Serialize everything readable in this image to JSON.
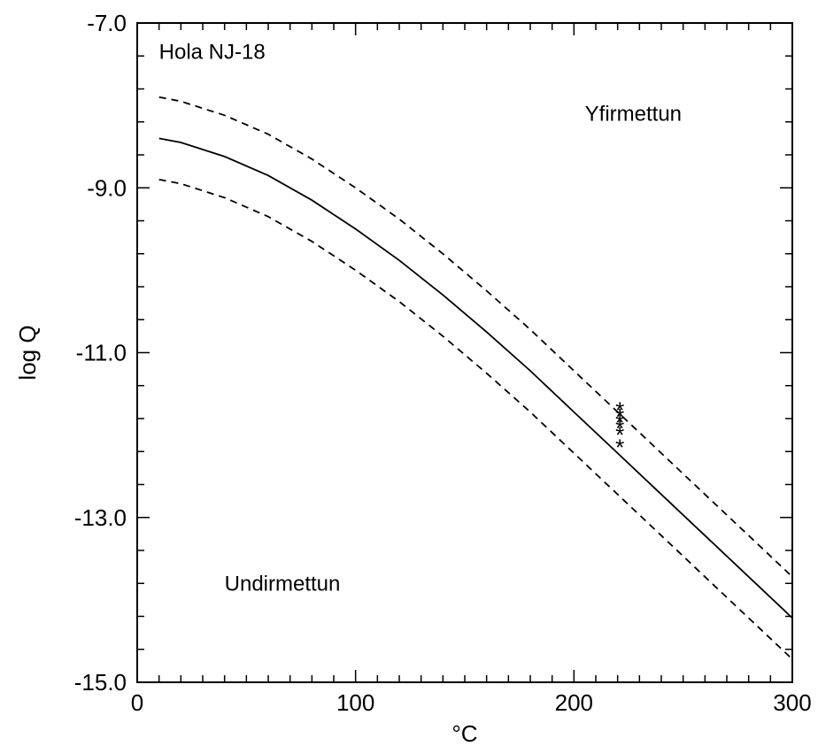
{
  "chart_data": {
    "type": "line",
    "title": "",
    "xlabel": "°C",
    "ylabel": "log Q",
    "xlim": [
      0,
      300
    ],
    "ylim": [
      -15,
      -7
    ],
    "x_ticks": [
      0,
      100,
      200,
      300
    ],
    "x_tick_labels": [
      "0",
      "100",
      "200",
      "300"
    ],
    "y_ticks": [
      -7,
      -9,
      -11,
      -13,
      -15
    ],
    "y_tick_labels": [
      "-7.0",
      "-9.0",
      "-11.0",
      "-13.0",
      "-15.0"
    ],
    "x_minor_step": 10,
    "y_minor_step": 0.4,
    "grid": false,
    "annotations": [
      {
        "text": "Hola NJ-18",
        "x": 10,
        "y": -7.35
      },
      {
        "text": "Yfirmettun",
        "x": 205,
        "y": -8.1
      },
      {
        "text": "Undirmettun",
        "x": 40,
        "y": -13.8
      }
    ],
    "series": [
      {
        "style": "solid",
        "x": [
          10,
          20,
          40,
          60,
          80,
          100,
          120,
          140,
          160,
          180,
          200,
          220,
          240,
          260,
          280,
          300
        ],
        "y": [
          -8.4,
          -8.45,
          -8.62,
          -8.85,
          -9.15,
          -9.5,
          -9.88,
          -10.3,
          -10.75,
          -11.22,
          -11.72,
          -12.22,
          -12.72,
          -13.22,
          -13.72,
          -14.22
        ]
      },
      {
        "style": "dashed",
        "x": [
          10,
          20,
          40,
          60,
          80,
          100,
          120,
          140,
          160,
          180,
          200,
          220,
          240,
          260,
          280,
          300
        ],
        "y": [
          -7.9,
          -7.95,
          -8.12,
          -8.35,
          -8.65,
          -9.0,
          -9.38,
          -9.8,
          -10.25,
          -10.72,
          -11.22,
          -11.72,
          -12.22,
          -12.72,
          -13.22,
          -13.72
        ]
      },
      {
        "style": "dashed",
        "x": [
          10,
          20,
          40,
          60,
          80,
          100,
          120,
          140,
          160,
          180,
          200,
          220,
          240,
          260,
          280,
          300
        ],
        "y": [
          -8.9,
          -8.95,
          -9.12,
          -9.35,
          -9.65,
          -10.0,
          -10.38,
          -10.8,
          -11.25,
          -11.72,
          -12.22,
          -12.72,
          -13.22,
          -13.72,
          -14.22,
          -14.72
        ]
      }
    ],
    "points": {
      "marker": "*",
      "x": [
        221,
        221,
        221,
        221,
        221,
        221
      ],
      "y": [
        -11.7,
        -11.78,
        -11.85,
        -11.92,
        -12.0,
        -12.15
      ]
    }
  }
}
